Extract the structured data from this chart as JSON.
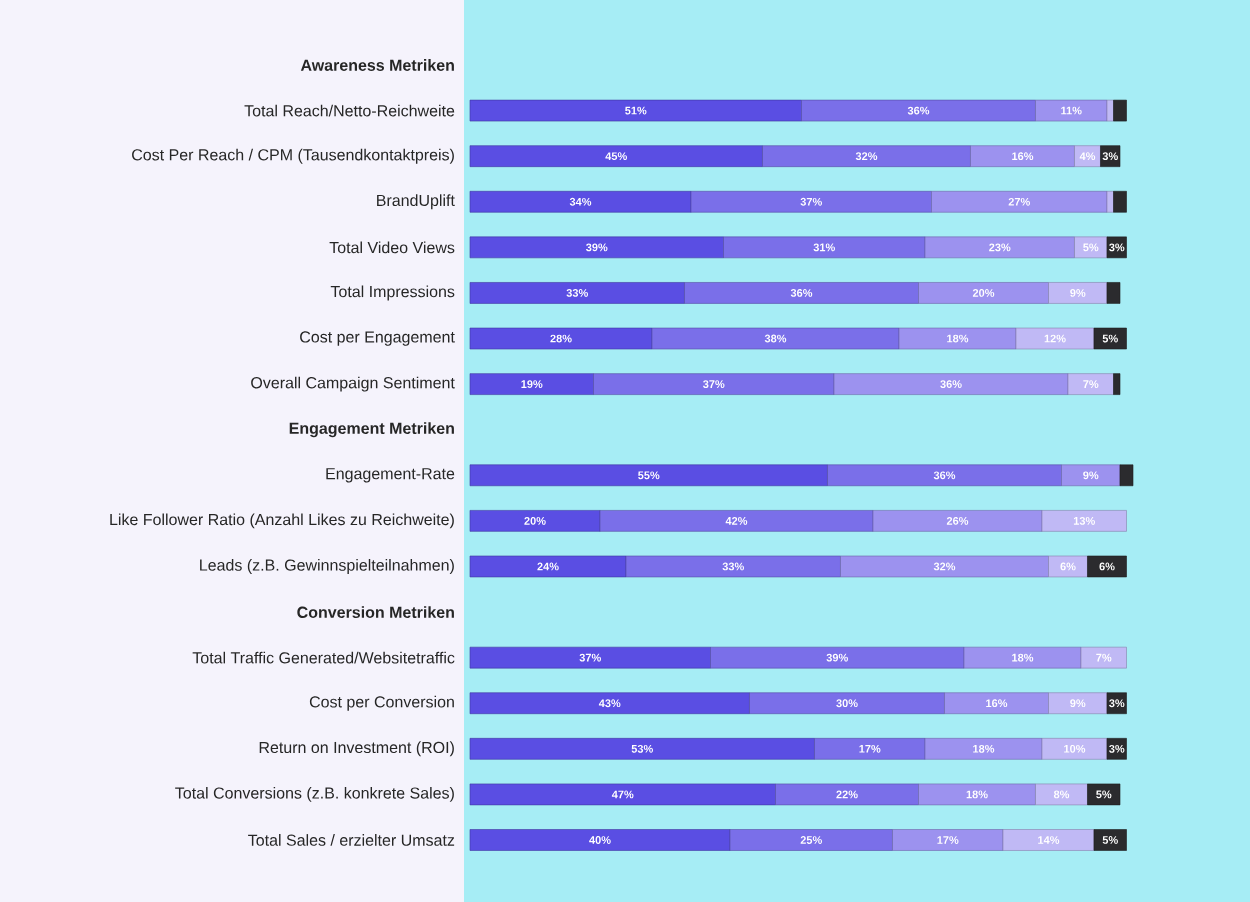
{
  "chart_data": {
    "type": "bar",
    "orientation": "horizontal",
    "stacked": true,
    "categories": [
      "Awareness Metriken",
      "Total Reach/Netto-Reichweite",
      "Cost Per Reach / CPM (Tausendkontaktpreis)",
      "BrandUplift",
      "Total Video Views",
      "Total Impressions",
      "Cost per Engagement",
      "Overall Campaign Sentiment",
      "Engagement Metriken",
      "Engagement-Rate",
      "Like Follower Ratio (Anzahl Likes zu Reichweite)",
      "Leads (z.B. Gewinnspielteilnahmen)",
      "Conversion Metriken",
      "Total Traffic Generated/Websitetraffic",
      "Cost per Conversion",
      "Return on Investment (ROI)",
      "Total Conversions (z.B. konkrete Sales)",
      "Total Sales / erzielter Umsatz"
    ],
    "xlim": [
      0,
      102
    ],
    "series": [
      {
        "color": "#5a4ee3",
        "values": [
          null,
          51,
          45,
          34,
          39,
          33,
          28,
          19,
          null,
          55,
          20,
          24,
          null,
          37,
          43,
          53,
          47,
          40
        ],
        "value_labels": [
          null,
          "51%",
          "45%",
          "34%",
          "39%",
          "33%",
          "28%",
          "19%",
          null,
          "55%",
          "20%",
          "24%",
          null,
          "37%",
          "43%",
          "53%",
          "47%",
          "40%"
        ]
      },
      {
        "color": "#7a6fe9",
        "values": [
          null,
          36,
          32,
          37,
          31,
          36,
          38,
          37,
          null,
          36,
          42,
          33,
          null,
          39,
          30,
          17,
          22,
          25
        ],
        "value_labels": [
          null,
          "36%",
          "32%",
          "37%",
          "31%",
          "36%",
          "38%",
          "37%",
          null,
          "36%",
          "42%",
          "33%",
          null,
          "39%",
          "30%",
          "17%",
          "22%",
          "25%"
        ]
      },
      {
        "color": "#9c92ef",
        "values": [
          null,
          11,
          16,
          27,
          23,
          20,
          18,
          36,
          null,
          9,
          26,
          32,
          null,
          18,
          16,
          18,
          18,
          17
        ],
        "value_labels": [
          null,
          "11%",
          "16%",
          "27%",
          "23%",
          "20%",
          "18%",
          "36%",
          null,
          "9%",
          "26%",
          "32%",
          null,
          "18%",
          "16%",
          "18%",
          "18%",
          "17%"
        ]
      },
      {
        "color": "#c0b9f5",
        "values": [
          null,
          1,
          4,
          1,
          5,
          9,
          12,
          7,
          null,
          null,
          13,
          6,
          null,
          7,
          9,
          10,
          8,
          14
        ],
        "value_labels": [
          null,
          null,
          "4%",
          null,
          "5%",
          "9%",
          "12%",
          "7%",
          null,
          null,
          "13%",
          "6%",
          null,
          "7%",
          "9%",
          "10%",
          "8%",
          "14%"
        ]
      },
      {
        "color": "#2b2b2e",
        "values": [
          null,
          2,
          3,
          2,
          3,
          2,
          5,
          1,
          null,
          2,
          null,
          6,
          null,
          null,
          3,
          3,
          5,
          5
        ],
        "value_labels": [
          null,
          null,
          "3%",
          null,
          "3%",
          null,
          "5%",
          null,
          null,
          null,
          null,
          "6%",
          null,
          null,
          "3%",
          "3%",
          "5%",
          "5%"
        ]
      }
    ]
  }
}
